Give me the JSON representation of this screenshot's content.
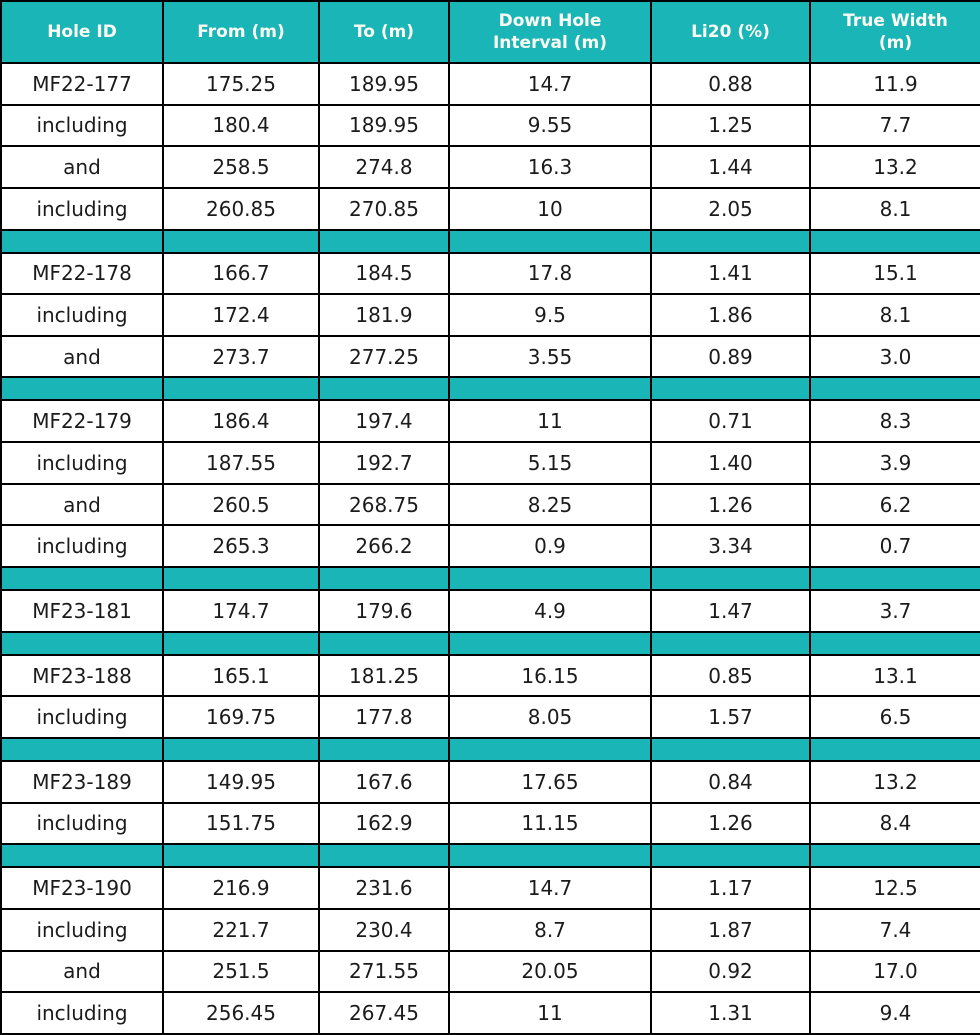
{
  "colors": {
    "accent": "#1ab5b6",
    "border": "#000000",
    "header-text": "#fbfbf3",
    "body-text": "#1b1b1b",
    "page-bg": "#ffffff"
  },
  "chart_data": {
    "type": "table",
    "title": "",
    "columns": [
      {
        "key": "hole-id",
        "label": "Hole ID"
      },
      {
        "key": "from-m",
        "label": "From (m)"
      },
      {
        "key": "to-m",
        "label": "To (m)"
      },
      {
        "key": "down-hole-interval-m",
        "label": "Down Hole\nInterval (m)"
      },
      {
        "key": "li2o-pct",
        "label": "Li20 (%)"
      },
      {
        "key": "true-width-m",
        "label": "True Width\n(m)"
      }
    ],
    "rows": [
      {
        "type": "data",
        "cells": [
          "MF22-177",
          "175.25",
          "189.95",
          "14.7",
          "0.88",
          "11.9"
        ]
      },
      {
        "type": "data",
        "cells": [
          "including",
          "180.4",
          "189.95",
          "9.55",
          "1.25",
          "7.7"
        ]
      },
      {
        "type": "data",
        "cells": [
          "and",
          "258.5",
          "274.8",
          "16.3",
          "1.44",
          "13.2"
        ]
      },
      {
        "type": "data",
        "cells": [
          "including",
          "260.85",
          "270.85",
          "10",
          "2.05",
          "8.1"
        ]
      },
      {
        "type": "separator",
        "cells": [
          "",
          "",
          "",
          "",
          "",
          ""
        ]
      },
      {
        "type": "data",
        "cells": [
          "MF22-178",
          "166.7",
          "184.5",
          "17.8",
          "1.41",
          "15.1"
        ]
      },
      {
        "type": "data",
        "cells": [
          "including",
          "172.4",
          "181.9",
          "9.5",
          "1.86",
          "8.1"
        ]
      },
      {
        "type": "data",
        "cells": [
          "and",
          "273.7",
          "277.25",
          "3.55",
          "0.89",
          "3.0"
        ]
      },
      {
        "type": "separator",
        "cells": [
          "",
          "",
          "",
          "",
          "",
          ""
        ]
      },
      {
        "type": "data",
        "cells": [
          "MF22-179",
          "186.4",
          "197.4",
          "11",
          "0.71",
          "8.3"
        ]
      },
      {
        "type": "data",
        "cells": [
          "including",
          "187.55",
          "192.7",
          "5.15",
          "1.40",
          "3.9"
        ]
      },
      {
        "type": "data",
        "cells": [
          "and",
          "260.5",
          "268.75",
          "8.25",
          "1.26",
          "6.2"
        ]
      },
      {
        "type": "data",
        "cells": [
          "including",
          "265.3",
          "266.2",
          "0.9",
          "3.34",
          "0.7"
        ]
      },
      {
        "type": "separator",
        "cells": [
          "",
          "",
          "",
          "",
          "",
          ""
        ]
      },
      {
        "type": "data",
        "cells": [
          "MF23-181",
          "174.7",
          "179.6",
          "4.9",
          "1.47",
          "3.7"
        ]
      },
      {
        "type": "separator",
        "cells": [
          "",
          "",
          "",
          "",
          "",
          ""
        ]
      },
      {
        "type": "data",
        "cells": [
          "MF23-188",
          "165.1",
          "181.25",
          "16.15",
          "0.85",
          "13.1"
        ]
      },
      {
        "type": "data",
        "cells": [
          "including",
          "169.75",
          "177.8",
          "8.05",
          "1.57",
          "6.5"
        ]
      },
      {
        "type": "separator",
        "cells": [
          "",
          "",
          "",
          "",
          "",
          ""
        ]
      },
      {
        "type": "data",
        "cells": [
          "MF23-189",
          "149.95",
          "167.6",
          "17.65",
          "0.84",
          "13.2"
        ]
      },
      {
        "type": "data",
        "cells": [
          "including",
          "151.75",
          "162.9",
          "11.15",
          "1.26",
          "8.4"
        ]
      },
      {
        "type": "separator",
        "cells": [
          "",
          "",
          "",
          "",
          "",
          ""
        ]
      },
      {
        "type": "data",
        "cells": [
          "MF23-190",
          "216.9",
          "231.6",
          "14.7",
          "1.17",
          "12.5"
        ]
      },
      {
        "type": "data",
        "cells": [
          "including",
          "221.7",
          "230.4",
          "8.7",
          "1.87",
          "7.4"
        ]
      },
      {
        "type": "data",
        "cells": [
          "and",
          "251.5",
          "271.55",
          "20.05",
          "0.92",
          "17.0"
        ]
      },
      {
        "type": "data",
        "cells": [
          "including",
          "256.45",
          "267.45",
          "11",
          "1.31",
          "9.4"
        ]
      }
    ]
  }
}
